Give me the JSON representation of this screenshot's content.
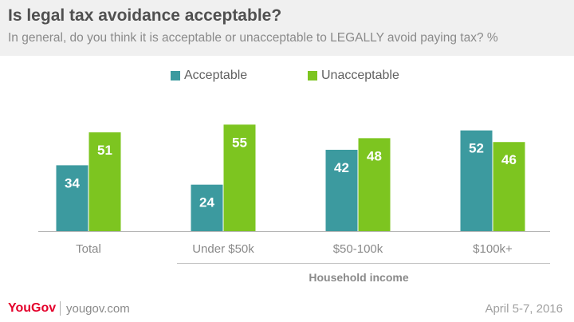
{
  "header": {
    "title": "Is legal tax avoidance acceptable?",
    "subtitle": "In general, do you think it is acceptable or unacceptable to LEGALLY avoid paying tax? %"
  },
  "footer": {
    "brand": "YouGov",
    "site": "yougov.com",
    "date": "April 5-7, 2016"
  },
  "chart_data": {
    "type": "bar",
    "categories": [
      "Total",
      "Under $50k",
      "$50-100k",
      "$100k+"
    ],
    "series": [
      {
        "name": "Acceptable",
        "color": "#3c9a9f",
        "values": [
          34,
          24,
          42,
          52
        ]
      },
      {
        "name": "Unacceptable",
        "color": "#7dc520",
        "values": [
          51,
          55,
          48,
          46
        ]
      }
    ],
    "group_label": "Household income",
    "group_categories": [
      "Under $50k",
      "$50-100k",
      "$100k+"
    ],
    "legend_position": "top-center",
    "grid": false,
    "ylim": [
      0,
      60
    ]
  }
}
